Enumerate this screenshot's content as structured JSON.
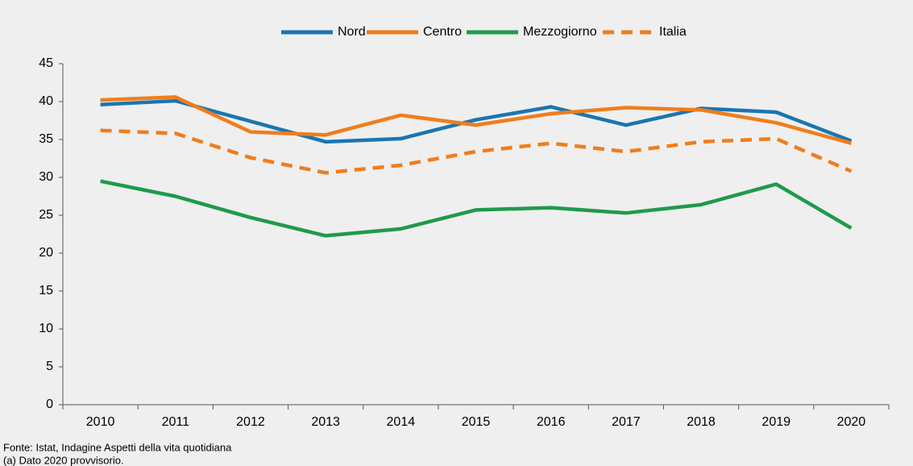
{
  "chart_data": {
    "type": "line",
    "categories": [
      "2010",
      "2011",
      "2012",
      "2013",
      "2014",
      "2015",
      "2016",
      "2017",
      "2018",
      "2019",
      "2020"
    ],
    "series": [
      {
        "name": "Nord",
        "color": "#1b75b0",
        "values": [
          39.6,
          40.1,
          37.4,
          34.7,
          35.1,
          37.6,
          39.3,
          36.9,
          39.1,
          38.6,
          34.8
        ]
      },
      {
        "name": "Centro",
        "color": "#f07d1c",
        "values": [
          40.2,
          40.6,
          36.0,
          35.6,
          38.2,
          36.9,
          38.4,
          39.2,
          38.9,
          37.2,
          34.5
        ]
      },
      {
        "name": "Mezzogiorno",
        "color": "#1f9a4b",
        "values": [
          29.5,
          27.5,
          24.7,
          22.3,
          23.2,
          25.7,
          26.0,
          25.3,
          26.4,
          29.1,
          23.3
        ]
      },
      {
        "name": "Italia",
        "color": "#f07d1c",
        "dashed": true,
        "values": [
          36.2,
          35.8,
          32.6,
          30.6,
          31.6,
          33.4,
          34.5,
          33.4,
          34.7,
          35.1,
          30.8
        ]
      }
    ],
    "ylim": [
      0,
      45
    ],
    "yticks": [
      0,
      5,
      10,
      15,
      20,
      25,
      30,
      35,
      40,
      45
    ],
    "legend": "top",
    "grid": false,
    "notes": [
      "Fonte: Istat, Indagine Aspetti della vita quotidiana",
      "(a) Dato 2020 provvisorio."
    ]
  }
}
